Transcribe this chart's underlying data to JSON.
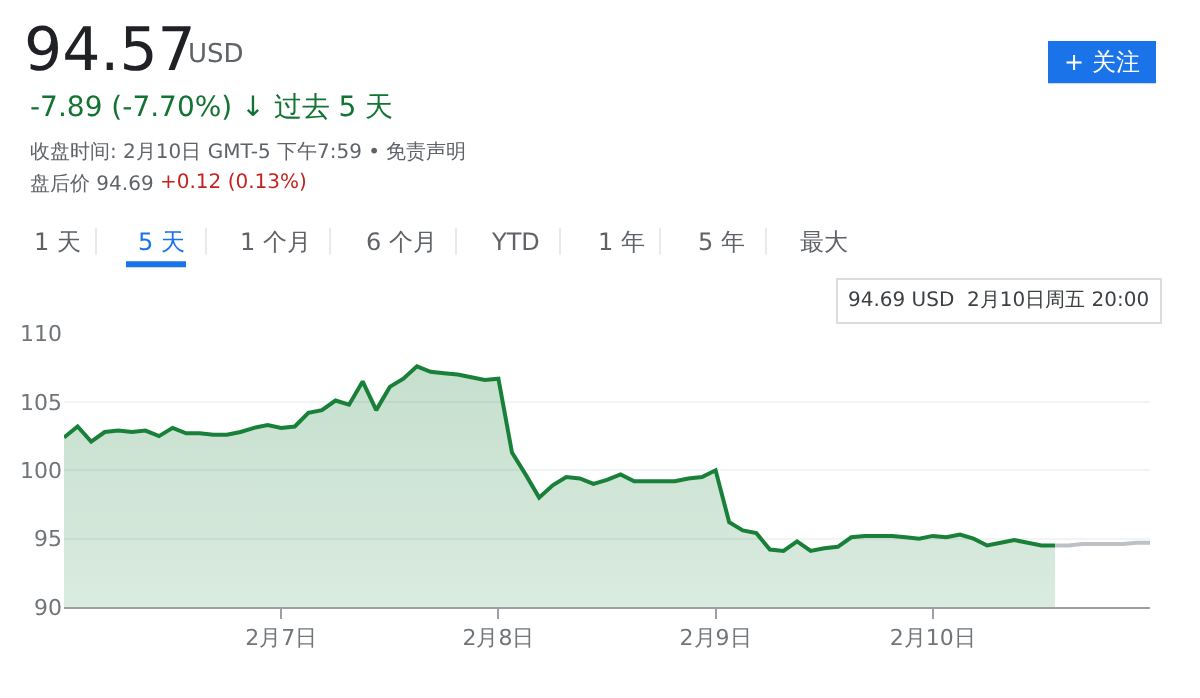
{
  "chart_data": {
    "type": "area",
    "title": "94.57",
    "annotations": [
      "USD",
      "-7.89 (-7.70%) ↓ 过去 5 天",
      "收盘时间: 2月10日 GMT-5 下午7:59 • 免责声明",
      "盘后价 94.69",
      "+0.12 (0.13%)",
      "1 天",
      "5 天",
      "1 个月",
      "6 个月",
      "YTD",
      "1 年",
      "5 年",
      "最大",
      "+ 关注",
      "94.69 USD  2月10日周五 20:00"
    ],
    "categories": [
      null,
      null,
      null,
      null,
      null,
      null,
      null,
      null,
      null,
      null,
      null,
      null,
      null,
      null,
      null,
      null,
      "2月7日",
      null,
      null,
      null,
      null,
      null,
      null,
      null,
      null,
      null,
      null,
      null,
      null,
      null,
      null,
      null,
      "2月8日",
      null,
      null,
      null,
      null,
      null,
      null,
      null,
      null,
      null,
      null,
      null,
      null,
      null,
      null,
      null,
      "2月9日",
      null,
      null,
      null,
      null,
      null,
      null,
      null,
      null,
      null,
      null,
      null,
      null,
      null,
      null,
      null,
      "2月10日",
      null,
      null,
      null,
      null,
      null,
      null,
      null,
      null,
      null,
      null,
      null,
      null,
      null,
      null,
      null,
      null
    ],
    "series": [
      {
        "color": "#188038",
        "values": [
          102.4,
          103.2,
          102.1,
          102.8,
          102.9,
          102.8,
          102.9,
          102.5,
          103.1,
          102.7,
          102.7,
          102.6,
          102.6,
          102.8,
          103.1,
          103.3,
          103.1,
          103.2,
          104.2,
          104.4,
          105.1,
          104.8,
          106.5,
          104.4,
          106.1,
          106.7,
          107.6,
          107.2,
          107.1,
          107.0,
          106.8,
          106.6,
          106.7,
          101.3,
          99.7,
          98.0,
          98.9,
          99.5,
          99.4,
          99.0,
          99.3,
          99.7,
          99.2,
          99.2,
          99.2,
          99.2,
          99.4,
          99.5,
          100.0,
          96.2,
          95.6,
          95.4,
          94.2,
          94.1,
          94.8,
          94.1,
          94.3,
          94.4,
          95.1,
          95.2,
          95.2,
          95.2,
          95.1,
          95.0,
          95.2,
          95.1,
          95.3,
          95.0,
          94.5,
          94.7,
          94.9,
          94.7,
          94.5,
          94.5,
          null,
          null,
          null,
          null,
          null,
          null,
          null
        ]
      },
      {
        "type": "line",
        "color": "#bdc1c6",
        "values": [
          null,
          null,
          null,
          null,
          null,
          null,
          null,
          null,
          null,
          null,
          null,
          null,
          null,
          null,
          null,
          null,
          null,
          null,
          null,
          null,
          null,
          null,
          null,
          null,
          null,
          null,
          null,
          null,
          null,
          null,
          null,
          null,
          null,
          null,
          null,
          null,
          null,
          null,
          null,
          null,
          null,
          null,
          null,
          null,
          null,
          null,
          null,
          null,
          null,
          null,
          null,
          null,
          null,
          null,
          null,
          null,
          null,
          null,
          null,
          null,
          null,
          null,
          null,
          null,
          null,
          null,
          null,
          null,
          null,
          null,
          null,
          null,
          null,
          94.5,
          94.5,
          94.6,
          94.6,
          94.6,
          94.6,
          94.7,
          94.7
        ]
      }
    ],
    "ylim": [
      90,
      110
    ],
    "yticks": [
      90,
      95,
      100,
      105,
      110
    ],
    "grid": "y"
  }
}
